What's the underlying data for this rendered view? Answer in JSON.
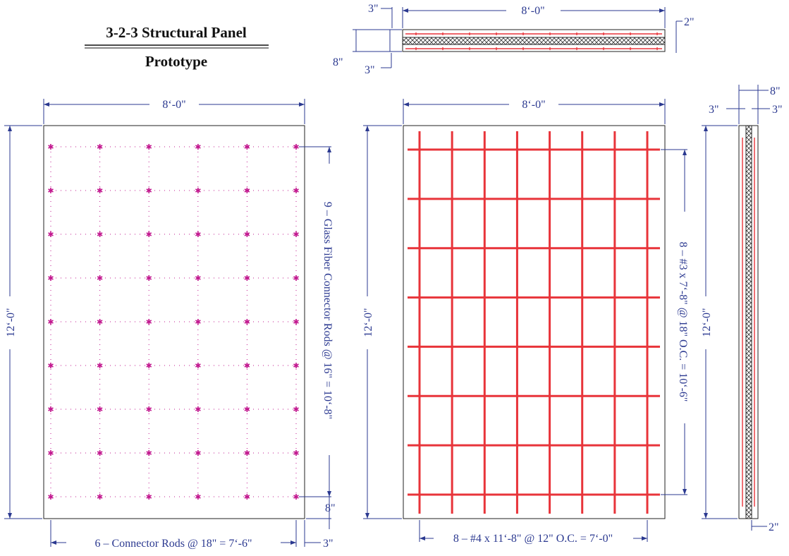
{
  "title": {
    "line1": "3-2-3 Structural Panel",
    "line2": "Prototype"
  },
  "section_view": {
    "width_label": "8‘-0\"",
    "left_offset_label": "3\"",
    "right_offset_label": "2\"",
    "thickness_label": "8\"",
    "bottom_offset_label": "3\""
  },
  "connector_view": {
    "width_label": "8‘-0\"",
    "height_label": "12‘-0\"",
    "vertical_spacing_label": "9 – Glass Fiber Connector Rods @ 16\" = 10‘-8\"",
    "horizontal_spacing_label": "6 – Connector Rods @ 18\" = 7‘-6\"",
    "bottom_edge_label": "8\"",
    "right_edge_label": "3\"",
    "rod_columns": 6,
    "rod_rows": 9,
    "rod_symbol": "✱"
  },
  "rebar_view": {
    "width_label": "8‘-0\"",
    "height_label": "12‘-0\"",
    "horizontal_bars_label": "8 – #3 x 7‘-8\" @ 18\" O.C. = 10‘-6\"",
    "vertical_bars_label": "8 – #4 x 11‘-8\" @ 12\" O.C. = 7‘-0\"",
    "horizontal_bar_count": 8,
    "vertical_bar_count": 8
  },
  "edge_view": {
    "thickness_label": "8\"",
    "left_face_label": "3\"",
    "right_face_label": "3\"",
    "height_label": "12‘-0\"",
    "bottom_offset_label": "2\""
  },
  "colors": {
    "dimension": "#2b3990",
    "rebar": "#e8343a",
    "connector": "#c2188f",
    "outline": "#222222"
  }
}
